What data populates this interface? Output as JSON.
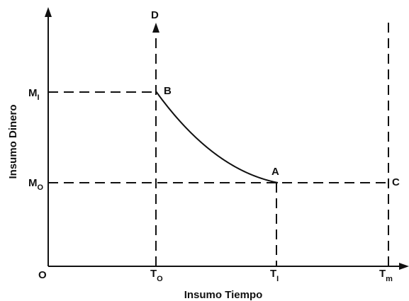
{
  "axes": {
    "x_label": "Insumo Tiempo",
    "y_label": "Insumo Dinero",
    "origin": "O"
  },
  "y_ticks": [
    {
      "base": "M",
      "sub": "I"
    },
    {
      "base": "M",
      "sub": "O"
    }
  ],
  "x_ticks": [
    {
      "base": "T",
      "sub": "O"
    },
    {
      "base": "T",
      "sub": "I"
    },
    {
      "base": "T",
      "sub": "m"
    }
  ],
  "points": {
    "d": "D",
    "b": "B",
    "a": "A",
    "c": "C"
  }
}
